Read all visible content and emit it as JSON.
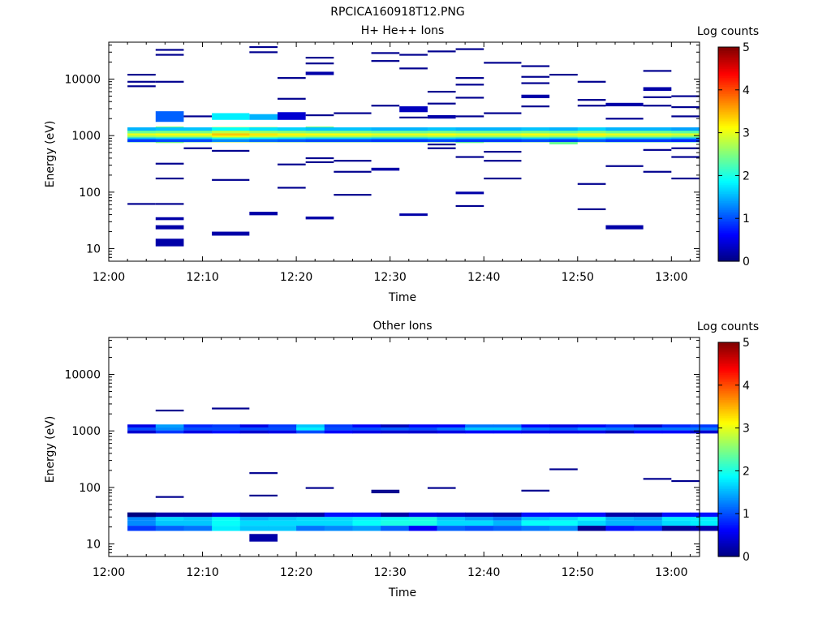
{
  "figure_title": "RPCICA160918T12.PNG",
  "chart_data": [
    {
      "type": "heatmap",
      "title": "H+ He++ Ions",
      "xlabel": "Time",
      "ylabel": "Energy (eV)",
      "xlim": [
        "12:00",
        "13:03"
      ],
      "ylim": [
        6,
        45000
      ],
      "yscale": "log",
      "x_ticks": [
        "12:00",
        "12:10",
        "12:20",
        "12:30",
        "12:40",
        "12:50",
        "13:00"
      ],
      "y_ticks": [
        "10",
        "100",
        "1000",
        "10000"
      ],
      "colorbar": {
        "label": "Log counts",
        "range": [
          0,
          5
        ],
        "ticks": [
          "0",
          "1",
          "2",
          "3",
          "4",
          "5"
        ]
      },
      "time_bins": [
        "12:01",
        "12:04",
        "12:07",
        "12:10",
        "12:13",
        "12:16",
        "12:19",
        "12:22",
        "12:25",
        "12:28",
        "12:31",
        "12:34",
        "12:37",
        "12:40",
        "12:43",
        "12:46",
        "12:49",
        "12:52",
        "12:55",
        "12:58",
        "13:01"
      ],
      "cells": [
        {
          "t0": "12:02",
          "t1": "12:05",
          "e0": 760,
          "e1": 1400,
          "v": 2.4
        },
        {
          "t0": "12:05",
          "t1": "12:08",
          "e0": 740,
          "e1": 1450,
          "v": 2.5
        },
        {
          "t0": "12:08",
          "t1": "12:11",
          "e0": 760,
          "e1": 1400,
          "v": 2.5
        },
        {
          "t0": "12:11",
          "t1": "12:15",
          "e0": 760,
          "e1": 1420,
          "v": 2.9
        },
        {
          "t0": "12:15",
          "t1": "12:18",
          "e0": 760,
          "e1": 1420,
          "v": 2.7
        },
        {
          "t0": "12:18",
          "t1": "12:21",
          "e0": 760,
          "e1": 1400,
          "v": 2.6
        },
        {
          "t0": "12:21",
          "t1": "12:24",
          "e0": 760,
          "e1": 1450,
          "v": 2.5
        },
        {
          "t0": "12:24",
          "t1": "12:28",
          "e0": 760,
          "e1": 1400,
          "v": 2.5
        },
        {
          "t0": "12:28",
          "t1": "12:31",
          "e0": 760,
          "e1": 1400,
          "v": 2.4
        },
        {
          "t0": "12:31",
          "t1": "12:34",
          "e0": 760,
          "e1": 1400,
          "v": 2.4
        },
        {
          "t0": "12:34",
          "t1": "12:37",
          "e0": 760,
          "e1": 1400,
          "v": 2.5
        },
        {
          "t0": "12:37",
          "t1": "12:40",
          "e0": 740,
          "e1": 1400,
          "v": 2.4
        },
        {
          "t0": "12:40",
          "t1": "12:44",
          "e0": 760,
          "e1": 1400,
          "v": 2.4
        },
        {
          "t0": "12:44",
          "t1": "12:47",
          "e0": 760,
          "e1": 1400,
          "v": 2.5
        },
        {
          "t0": "12:47",
          "t1": "12:50",
          "e0": 700,
          "e1": 1400,
          "v": 2.4
        },
        {
          "t0": "12:50",
          "t1": "12:53",
          "e0": 760,
          "e1": 1400,
          "v": 2.6
        },
        {
          "t0": "12:53",
          "t1": "12:57",
          "e0": 760,
          "e1": 1400,
          "v": 2.4
        },
        {
          "t0": "12:57",
          "t1": "13:00",
          "e0": 760,
          "e1": 1400,
          "v": 2.4
        },
        {
          "t0": "13:00",
          "t1": "13:03",
          "e0": 760,
          "e1": 1400,
          "v": 2.3
        },
        {
          "t0": "12:05",
          "t1": "12:08",
          "e0": 1750,
          "e1": 2700,
          "v": 1.1
        },
        {
          "t0": "12:11",
          "t1": "12:15",
          "e0": 1900,
          "e1": 2500,
          "v": 1.8
        },
        {
          "t0": "12:15",
          "t1": "12:18",
          "e0": 1900,
          "e1": 2400,
          "v": 1.5
        },
        {
          "t0": "12:18",
          "t1": "12:21",
          "e0": 1900,
          "e1": 2600,
          "v": 0.4
        },
        {
          "t0": "12:31",
          "t1": "12:34",
          "e0": 2600,
          "e1": 3300,
          "v": 0.3
        },
        {
          "t0": "12:05",
          "t1": "12:08",
          "e0": 11,
          "e1": 15,
          "v": 0.2
        },
        {
          "t0": "12:05",
          "t1": "12:08",
          "e0": 22,
          "e1": 26,
          "v": 0.2
        },
        {
          "t0": "12:05",
          "t1": "12:08",
          "e0": 32,
          "e1": 36,
          "v": 0.2
        },
        {
          "t0": "12:11",
          "t1": "12:15",
          "e0": 17,
          "e1": 20,
          "v": 0.2
        },
        {
          "t0": "12:15",
          "t1": "12:18",
          "e0": 39,
          "e1": 45,
          "v": 0.2
        },
        {
          "t0": "12:21",
          "t1": "12:24",
          "e0": 33,
          "e1": 37,
          "v": 0.2
        },
        {
          "t0": "12:28",
          "t1": "12:31",
          "e0": 240,
          "e1": 270,
          "v": 0.2
        },
        {
          "t0": "12:31",
          "t1": "12:34",
          "e0": 38,
          "e1": 42,
          "v": 0.2
        },
        {
          "t0": "12:37",
          "t1": "12:40",
          "e0": 92,
          "e1": 102,
          "v": 0.2
        },
        {
          "t0": "12:53",
          "t1": "12:57",
          "e0": 22,
          "e1": 26,
          "v": 0.2
        },
        {
          "t0": "12:53",
          "t1": "12:57",
          "e0": 3300,
          "e1": 3800,
          "v": 0.2
        },
        {
          "t0": "12:57",
          "t1": "13:00",
          "e0": 6200,
          "e1": 7200,
          "v": 0.2
        },
        {
          "t0": "12:21",
          "t1": "12:24",
          "e0": 11800,
          "e1": 13500,
          "v": 0.2
        },
        {
          "t0": "12:44",
          "t1": "12:47",
          "e0": 4600,
          "e1": 5300,
          "v": 0.2
        },
        {
          "t0": "12:34",
          "t1": "12:37",
          "e0": 2000,
          "e1": 2300,
          "v": 0.2
        }
      ],
      "lines": [
        [
          "12:02",
          "12:05",
          [
            12000,
            9000,
            7500,
            62
          ]
        ],
        [
          "12:05",
          "12:08",
          [
            33000,
            27000,
            9000,
            320,
            175,
            62
          ]
        ],
        [
          "12:08",
          "12:11",
          [
            2200,
            600
          ]
        ],
        [
          "12:11",
          "12:15",
          [
            540,
            165
          ]
        ],
        [
          "12:15",
          "12:18",
          [
            37000,
            30000
          ]
        ],
        [
          "12:18",
          "12:21",
          [
            10500,
            4500,
            310,
            120
          ]
        ],
        [
          "12:21",
          "12:24",
          [
            24000,
            19000,
            2300,
            400,
            340
          ]
        ],
        [
          "12:24",
          "12:28",
          [
            2500,
            360,
            230,
            90
          ]
        ],
        [
          "12:28",
          "12:31",
          [
            29000,
            21000,
            3400
          ]
        ],
        [
          "12:31",
          "12:34",
          [
            27000,
            15500,
            2100
          ]
        ],
        [
          "12:34",
          "12:37",
          [
            31000,
            6000,
            3700,
            700,
            600
          ]
        ],
        [
          "12:37",
          "12:40",
          [
            34000,
            10500,
            8000,
            4700,
            2200,
            420,
            57
          ]
        ],
        [
          "12:40",
          "12:44",
          [
            19500,
            2500,
            520,
            360,
            175
          ]
        ],
        [
          "12:44",
          "12:47",
          [
            17000,
            11000,
            8500,
            3300
          ]
        ],
        [
          "12:47",
          "12:50",
          [
            12000
          ]
        ],
        [
          "12:50",
          "12:53",
          [
            9000,
            4300,
            3400,
            140,
            50
          ]
        ],
        [
          "12:53",
          "12:57",
          [
            2000,
            290
          ]
        ],
        [
          "12:57",
          "13:00",
          [
            14000,
            4800,
            3400,
            560,
            230
          ]
        ],
        [
          "13:00",
          "13:03",
          [
            5000,
            3200,
            2200,
            600,
            420,
            175
          ]
        ]
      ]
    },
    {
      "type": "heatmap",
      "title": "Other Ions",
      "xlabel": "Time",
      "ylabel": "Energy (eV)",
      "xlim": [
        "12:00",
        "13:03"
      ],
      "ylim": [
        6,
        45000
      ],
      "yscale": "log",
      "x_ticks": [
        "12:00",
        "12:10",
        "12:20",
        "12:30",
        "12:40",
        "12:50",
        "13:00"
      ],
      "y_ticks": [
        "10",
        "100",
        "1000",
        "10000"
      ],
      "colorbar": {
        "label": "Log counts",
        "range": [
          0,
          5
        ],
        "ticks": [
          "0",
          "1",
          "2",
          "3",
          "4",
          "5"
        ]
      },
      "bands": [
        {
          "e0": 1150,
          "e1": 1300,
          "v": [
            0.5,
            1.4,
            0.8,
            0.9,
            0.5,
            0.9,
            1.6,
            0.9,
            0.6,
            0.3,
            0.6,
            0.6,
            1.2,
            1.2,
            0.6,
            0.5,
            0.6,
            0.8,
            0.4,
            0.8,
            0.9
          ]
        },
        {
          "e0": 1020,
          "e1": 1150,
          "v": [
            1.0,
            1.3,
            1.0,
            1.0,
            1.0,
            1.0,
            1.8,
            1.0,
            1.0,
            1.1,
            1.0,
            1.2,
            1.6,
            1.6,
            1.2,
            1.1,
            1.3,
            1.2,
            1.2,
            1.2,
            1.2
          ]
        },
        {
          "e0": 900,
          "e1": 1020,
          "v": [
            0.4,
            0.9,
            0.5,
            0.7,
            0.4,
            0.5,
            1.0,
            0.6,
            0.5,
            0.4,
            0.4,
            0.5,
            0.6,
            0.6,
            0.5,
            0.5,
            0.5,
            0.3,
            0.6,
            0.6,
            0.4
          ]
        },
        {
          "e0": 30,
          "e1": 36,
          "v": [
            0.0,
            0.2,
            0.2,
            0.5,
            0.2,
            0.2,
            0.2,
            0.7,
            0.7,
            0.2,
            0.5,
            0.4,
            0.3,
            0.2,
            0.7,
            0.7,
            0.7,
            0.2,
            0.2,
            0.7,
            0.7
          ]
        },
        {
          "e0": 26,
          "e1": 30,
          "v": [
            1.3,
            1.7,
            1.6,
            1.9,
            1.5,
            1.6,
            1.7,
            1.7,
            1.8,
            1.9,
            2.0,
            1.6,
            1.4,
            1.2,
            1.6,
            1.7,
            1.9,
            1.5,
            1.4,
            1.8,
            1.8
          ]
        },
        {
          "e0": 21,
          "e1": 26,
          "v": [
            1.3,
            1.6,
            1.6,
            1.9,
            1.7,
            1.7,
            1.7,
            1.7,
            1.9,
            2.0,
            2.0,
            1.7,
            1.7,
            1.5,
            1.9,
            1.9,
            1.7,
            1.5,
            1.5,
            1.7,
            1.8
          ]
        },
        {
          "e0": 17,
          "e1": 21,
          "v": [
            0.9,
            1.1,
            1.2,
            1.8,
            1.6,
            1.6,
            1.2,
            1.3,
            1.4,
            1.1,
            0.6,
            1.1,
            1.0,
            1.1,
            1.2,
            1.3,
            0.1,
            0.7,
            0.8,
            0.1,
            0.2
          ]
        }
      ],
      "cells": [
        {
          "t0": "12:15",
          "t1": "12:18",
          "e0": 11,
          "e1": 15,
          "v": 0.2
        },
        {
          "t0": "12:02",
          "t1": "12:05",
          "e0": 30,
          "e1": 36,
          "v": 0.0
        }
      ],
      "lines": [
        [
          "12:05",
          "12:08",
          [
            2300,
            68
          ]
        ],
        [
          "12:11",
          "12:15",
          [
            2500
          ]
        ],
        [
          "12:15",
          "12:18",
          [
            180,
            72
          ]
        ],
        [
          "12:21",
          "12:24",
          [
            98
          ]
        ],
        [
          "12:28",
          "12:31",
          [
            88,
            82
          ]
        ],
        [
          "12:34",
          "12:37",
          [
            98
          ]
        ],
        [
          "12:44",
          "12:47",
          [
            88
          ]
        ],
        [
          "12:47",
          "12:50",
          [
            210
          ]
        ],
        [
          "12:57",
          "13:00",
          [
            142
          ]
        ],
        [
          "13:00",
          "13:03",
          [
            130
          ]
        ]
      ]
    }
  ]
}
